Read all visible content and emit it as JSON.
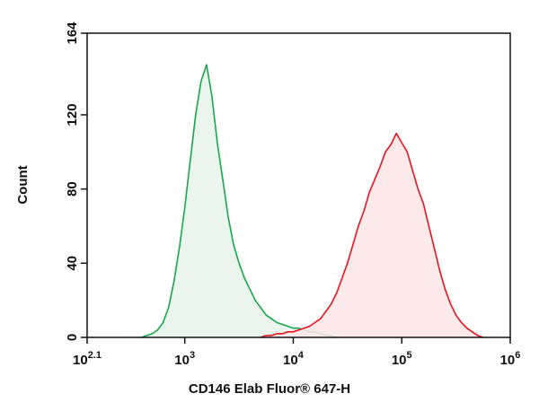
{
  "chart_data": {
    "type": "histogram-line",
    "xlabel": "CD146 Elab Fluor® 647-H",
    "ylabel": "Count",
    "xscale": "log",
    "xlim": [
      125.89,
      1000000
    ],
    "ylim": [
      0,
      164
    ],
    "xticks": [
      {
        "value": 125.89,
        "label": "10",
        "exponent": "2.1"
      },
      {
        "value": 1000,
        "label": "10",
        "exponent": "3"
      },
      {
        "value": 10000,
        "label": "10",
        "exponent": "4"
      },
      {
        "value": 100000,
        "label": "10",
        "exponent": "5"
      },
      {
        "value": 1000000,
        "label": "10",
        "exponent": "6"
      }
    ],
    "yticks": [
      0,
      40,
      80,
      120,
      164
    ],
    "series": [
      {
        "color": "#1aa64a",
        "fill": "#e6f5ea",
        "x": [
          398,
          447,
          501,
          562,
          631,
          708,
          794,
          891,
          1000,
          1122,
          1259,
          1413,
          1585,
          1778,
          1995,
          2239,
          2512,
          2818,
          3162,
          3548,
          3981,
          4467,
          5012,
          5623,
          6310,
          7079,
          7943,
          8913,
          10000,
          11220,
          12589,
          14125,
          15849,
          17783,
          19953,
          22387,
          25119
        ],
        "values": [
          0,
          1,
          2,
          4,
          8,
          16,
          30,
          48,
          70,
          95,
          120,
          138,
          147,
          130,
          105,
          85,
          65,
          50,
          40,
          32,
          26,
          20,
          16,
          12,
          10,
          8,
          7,
          6,
          5,
          5,
          4,
          3,
          3,
          2,
          1,
          1,
          0
        ]
      },
      {
        "color": "#e8141e",
        "fill": "#fce6e8",
        "x": [
          5012,
          5623,
          6310,
          7079,
          7943,
          8913,
          10000,
          11220,
          12589,
          14125,
          15849,
          17783,
          19953,
          22387,
          25119,
          28184,
          31623,
          35481,
          39811,
          44668,
          50119,
          56234,
          63096,
          70795,
          79433,
          89125,
          100000,
          112202,
          125893,
          141254,
          158489,
          177828,
          199526,
          223872,
          251189,
          281838,
          316228,
          354813,
          398107,
          446684,
          501187,
          562341
        ],
        "values": [
          0,
          1,
          1,
          2,
          2,
          3,
          3,
          4,
          5,
          6,
          8,
          10,
          14,
          18,
          24,
          32,
          40,
          50,
          60,
          68,
          78,
          85,
          92,
          100,
          104,
          110,
          105,
          100,
          90,
          80,
          72,
          60,
          48,
          36,
          26,
          18,
          12,
          8,
          5,
          3,
          1,
          0
        ]
      }
    ]
  }
}
